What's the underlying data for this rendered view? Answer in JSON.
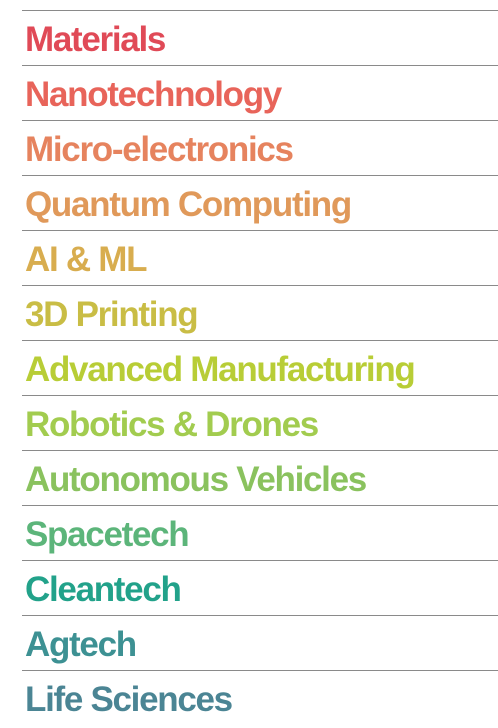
{
  "items": [
    {
      "label": "Materials",
      "color": "#e04a57"
    },
    {
      "label": "Nanotechnology",
      "color": "#e8645a"
    },
    {
      "label": "Micro-electronics",
      "color": "#e6835e"
    },
    {
      "label": "Quantum Computing",
      "color": "#e0995a"
    },
    {
      "label": "AI & ML",
      "color": "#d8ad4f"
    },
    {
      "label": "3D Printing",
      "color": "#c9bd45"
    },
    {
      "label": "Advanced Manufacturing",
      "color": "#b8cd36"
    },
    {
      "label": "Robotics & Drones",
      "color": "#a2cc4f"
    },
    {
      "label": "Autonomous Vehicles",
      "color": "#8ac25e"
    },
    {
      "label": "Spacetech",
      "color": "#5cb57a"
    },
    {
      "label": "Cleantech",
      "color": "#22a28a"
    },
    {
      "label": "Agtech",
      "color": "#3d9193"
    },
    {
      "label": "Life Sciences",
      "color": "#4b8594"
    }
  ]
}
